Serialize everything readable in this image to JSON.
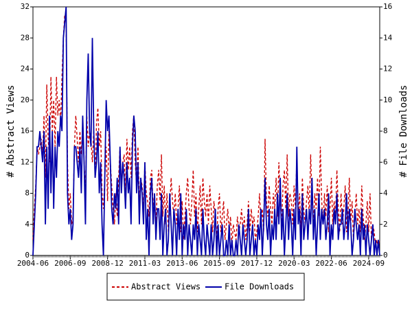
{
  "chart_data": {
    "type": "line",
    "x": [
      "2004-06",
      "2004-07",
      "2004-08",
      "2004-09",
      "2004-10",
      "2004-11",
      "2004-12",
      "2005-01",
      "2005-02",
      "2005-03",
      "2005-04",
      "2005-05",
      "2005-06",
      "2005-07",
      "2005-08",
      "2005-09",
      "2005-10",
      "2005-11",
      "2005-12",
      "2006-01",
      "2006-02",
      "2006-03",
      "2006-04",
      "2006-05",
      "2006-06",
      "2006-07",
      "2006-08",
      "2006-09",
      "2006-10",
      "2006-11",
      "2006-12",
      "2007-01",
      "2007-02",
      "2007-03",
      "2007-04",
      "2007-05",
      "2007-06",
      "2007-07",
      "2007-08",
      "2007-09",
      "2007-10",
      "2007-11",
      "2007-12",
      "2008-01",
      "2008-02",
      "2008-03",
      "2008-04",
      "2008-05",
      "2008-06",
      "2008-07",
      "2008-08",
      "2008-09",
      "2008-10",
      "2008-11",
      "2008-12",
      "2009-01",
      "2009-02",
      "2009-03",
      "2009-04",
      "2009-05",
      "2009-06",
      "2009-07",
      "2009-08",
      "2009-09",
      "2009-10",
      "2009-11",
      "2009-12",
      "2010-01",
      "2010-02",
      "2010-03",
      "2010-04",
      "2010-05",
      "2010-06",
      "2010-07",
      "2010-08",
      "2010-09",
      "2010-10",
      "2010-11",
      "2010-12",
      "2011-01",
      "2011-02",
      "2011-03",
      "2011-04",
      "2011-05",
      "2011-06",
      "2011-07",
      "2011-08",
      "2011-09",
      "2011-10",
      "2011-11",
      "2011-12",
      "2012-01",
      "2012-02",
      "2012-03",
      "2012-04",
      "2012-05",
      "2012-06",
      "2012-07",
      "2012-08",
      "2012-09",
      "2012-10",
      "2012-11",
      "2012-12",
      "2013-01",
      "2013-02",
      "2013-03",
      "2013-04",
      "2013-05",
      "2013-06",
      "2013-07",
      "2013-08",
      "2013-09",
      "2013-10",
      "2013-11",
      "2013-12",
      "2014-01",
      "2014-02",
      "2014-03",
      "2014-04",
      "2014-05",
      "2014-06",
      "2014-07",
      "2014-08",
      "2014-09",
      "2014-10",
      "2014-11",
      "2014-12",
      "2015-01",
      "2015-02",
      "2015-03",
      "2015-04",
      "2015-05",
      "2015-06",
      "2015-07",
      "2015-08",
      "2015-09",
      "2015-10",
      "2015-11",
      "2015-12",
      "2016-01",
      "2016-02",
      "2016-03",
      "2016-04",
      "2016-05",
      "2016-06",
      "2016-07",
      "2016-08",
      "2016-09",
      "2016-10",
      "2016-11",
      "2016-12",
      "2017-01",
      "2017-02",
      "2017-03",
      "2017-04",
      "2017-05",
      "2017-06",
      "2017-07",
      "2017-08",
      "2017-09",
      "2017-10",
      "2017-11",
      "2017-12",
      "2018-01",
      "2018-02",
      "2018-03",
      "2018-04",
      "2018-05",
      "2018-06",
      "2018-07",
      "2018-08",
      "2018-09",
      "2018-10",
      "2018-11",
      "2018-12",
      "2019-01",
      "2019-02",
      "2019-03",
      "2019-04",
      "2019-05",
      "2019-06",
      "2019-07",
      "2019-08",
      "2019-09",
      "2019-10",
      "2019-11",
      "2019-12",
      "2020-01",
      "2020-02",
      "2020-03",
      "2020-04",
      "2020-05",
      "2020-06",
      "2020-07",
      "2020-08",
      "2020-09",
      "2020-10",
      "2020-11",
      "2020-12",
      "2021-01",
      "2021-02",
      "2021-03",
      "2021-04",
      "2021-05",
      "2021-06",
      "2021-07",
      "2021-08",
      "2021-09",
      "2021-10",
      "2021-11",
      "2021-12",
      "2022-01",
      "2022-02",
      "2022-03",
      "2022-04",
      "2022-05",
      "2022-06",
      "2022-07",
      "2022-08",
      "2022-09",
      "2022-10",
      "2022-11",
      "2022-12",
      "2023-01",
      "2023-02",
      "2023-03",
      "2023-04",
      "2023-05",
      "2023-06",
      "2023-07",
      "2023-08",
      "2023-09",
      "2023-10",
      "2023-11",
      "2023-12",
      "2024-01",
      "2024-02",
      "2024-03",
      "2024-04",
      "2024-05",
      "2024-06",
      "2024-07",
      "2024-08",
      "2024-09",
      "2024-10",
      "2024-11",
      "2024-12",
      "2025-01",
      "2025-02",
      "2025-03",
      "2025-04",
      "2025-05"
    ],
    "xticks": [
      "2004-06",
      "2006-09",
      "2008-12",
      "2011-03",
      "2013-06",
      "2015-09",
      "2017-12",
      "2020-03",
      "2022-06",
      "2024-09"
    ],
    "ylabel": "# Abstract Views",
    "y2label": "# File Downloads",
    "ylim": [
      0,
      32
    ],
    "yticks": [
      0,
      4,
      8,
      12,
      16,
      20,
      24,
      28,
      32
    ],
    "y2lim": [
      0,
      16
    ],
    "y2ticks": [
      0,
      2,
      4,
      6,
      8,
      10,
      12,
      14,
      16
    ],
    "legend": "bottom",
    "series": [
      {
        "name": "Abstract Views",
        "color": "#cc0000",
        "line_style": "dashed",
        "axis": "y",
        "values": [
          2,
          6,
          9,
          14,
          13,
          14,
          15,
          13,
          18,
          10,
          22,
          15,
          12,
          23,
          16,
          20,
          14,
          23,
          18,
          20,
          17,
          23,
          28,
          31,
          30,
          12,
          6,
          8,
          4,
          5,
          14,
          18,
          15,
          12,
          16,
          13,
          17,
          12,
          8,
          18,
          14,
          16,
          15,
          12,
          16,
          10,
          17,
          19,
          14,
          16,
          8,
          6,
          10,
          14,
          7,
          16,
          12,
          9,
          6,
          4,
          8,
          5,
          10,
          14,
          9,
          12,
          13,
          8,
          15,
          11,
          14,
          10,
          16,
          18,
          12,
          9,
          14,
          7,
          10,
          9,
          6,
          12,
          8,
          7,
          5,
          10,
          11,
          6,
          8,
          4,
          9,
          11,
          7,
          13,
          5,
          9,
          4,
          8,
          3,
          6,
          10,
          7,
          5,
          8,
          4,
          6,
          9,
          3,
          7,
          2,
          5,
          8,
          10,
          6,
          4,
          7,
          11,
          5,
          8,
          3,
          6,
          9,
          4,
          10,
          7,
          5,
          8,
          4,
          9,
          6,
          3,
          7,
          5,
          2,
          6,
          8,
          3,
          5,
          7,
          2,
          4,
          6,
          3,
          5,
          1,
          4,
          3,
          2,
          5,
          3,
          4,
          6,
          3,
          5,
          2,
          4,
          7,
          3,
          6,
          4,
          5,
          2,
          3,
          5,
          8,
          4,
          6,
          3,
          15,
          7,
          5,
          9,
          6,
          4,
          8,
          6,
          10,
          5,
          12,
          7,
          4,
          9,
          11,
          6,
          13,
          5,
          8,
          7,
          4,
          9,
          6,
          13,
          5,
          8,
          3,
          10,
          6,
          4,
          7,
          9,
          5,
          13,
          7,
          4,
          8,
          6,
          10,
          5,
          14,
          7,
          4,
          8,
          5,
          9,
          3,
          6,
          10,
          4,
          7,
          5,
          11,
          6,
          3,
          8,
          4,
          6,
          9,
          3,
          5,
          10,
          4,
          7,
          2,
          5,
          8,
          4,
          6,
          3,
          9,
          5,
          2,
          4,
          7,
          3,
          8,
          2,
          4,
          3,
          1,
          2,
          1,
          2
        ]
      },
      {
        "name": "File Downloads",
        "color": "#0000aa",
        "line_style": "solid",
        "axis": "y2",
        "values": [
          0,
          2,
          4,
          7,
          7,
          8,
          7,
          6,
          8,
          2,
          7,
          3,
          9,
          4,
          8,
          3,
          7,
          5,
          8,
          7,
          9,
          8,
          14,
          15,
          16,
          4,
          2,
          3,
          1,
          2,
          7,
          7,
          6,
          5,
          7,
          4,
          9,
          6,
          2,
          10,
          13,
          8,
          7,
          14,
          8,
          5,
          6,
          8,
          4,
          6,
          2,
          0,
          5,
          10,
          8,
          9,
          6,
          3,
          2,
          4,
          3,
          5,
          2,
          7,
          4,
          6,
          5,
          3,
          6,
          4,
          5,
          2,
          7,
          9,
          8,
          4,
          6,
          2,
          5,
          4,
          2,
          6,
          1,
          3,
          0,
          4,
          5,
          2,
          4,
          1,
          3,
          3,
          1,
          4,
          0,
          2,
          3,
          0,
          1,
          4,
          2,
          0,
          3,
          2,
          0,
          3,
          1,
          4,
          0,
          2,
          1,
          3,
          0,
          2,
          1,
          0,
          2,
          1,
          3,
          0,
          2,
          1,
          0,
          3,
          1,
          0,
          2,
          1,
          0,
          2,
          0,
          1,
          3,
          0,
          2,
          0,
          1,
          2,
          0,
          0,
          1,
          0,
          2,
          0,
          1,
          0,
          0,
          1,
          0,
          2,
          1,
          0,
          2,
          1,
          0,
          1,
          3,
          0,
          1,
          2,
          0,
          1,
          0,
          2,
          1,
          3,
          0,
          2,
          5,
          2,
          1,
          3,
          0,
          2,
          1,
          3,
          1,
          4,
          2,
          5,
          1,
          3,
          0,
          2,
          4,
          1,
          3,
          2,
          0,
          3,
          1,
          7,
          2,
          3,
          0,
          4,
          1,
          2,
          3,
          1,
          3,
          2,
          5,
          1,
          3,
          0,
          2,
          4,
          1,
          3,
          2,
          3,
          1,
          2,
          4,
          0,
          2,
          1,
          3,
          2,
          4,
          1,
          2,
          2,
          3,
          1,
          2,
          4,
          1,
          3,
          2,
          0,
          1,
          3,
          2,
          1,
          2,
          0,
          3,
          1,
          2,
          0,
          2,
          1,
          0,
          1,
          2,
          0,
          1,
          0,
          1,
          0
        ]
      }
    ]
  }
}
